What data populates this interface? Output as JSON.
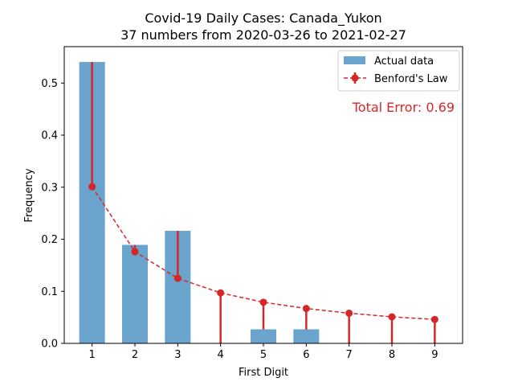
{
  "chart_data": {
    "type": "bar",
    "title_line1": "Covid-19 Daily Cases: Canada_Yukon",
    "title_line2": "37 numbers from 2020-03-26 to 2021-02-27",
    "xlabel": "First Digit",
    "ylabel": "Frequency",
    "categories": [
      1,
      2,
      3,
      4,
      5,
      6,
      7,
      8,
      9
    ],
    "xlim": [
      0.35,
      9.65
    ],
    "ylim": [
      0,
      0.57
    ],
    "yticks": [
      0.0,
      0.1,
      0.2,
      0.3,
      0.4,
      0.5
    ],
    "ytick_labels": [
      "0.0",
      "0.1",
      "0.2",
      "0.3",
      "0.4",
      "0.5"
    ],
    "series": [
      {
        "name": "Actual data",
        "kind": "bar",
        "color": "#6aa3cc",
        "values": [
          0.5405,
          0.1892,
          0.2162,
          0.0,
          0.027,
          0.027,
          0.0,
          0.0,
          0.0
        ]
      },
      {
        "name": "Benford's Law",
        "kind": "line-errorbar",
        "color": "#d62728",
        "values": [
          0.301,
          0.176,
          0.125,
          0.097,
          0.079,
          0.067,
          0.058,
          0.051,
          0.046
        ]
      }
    ],
    "annotation": "Total Error: 0.69",
    "annotation_color": "#d62728",
    "legend_position": "top-right",
    "grid": false
  }
}
